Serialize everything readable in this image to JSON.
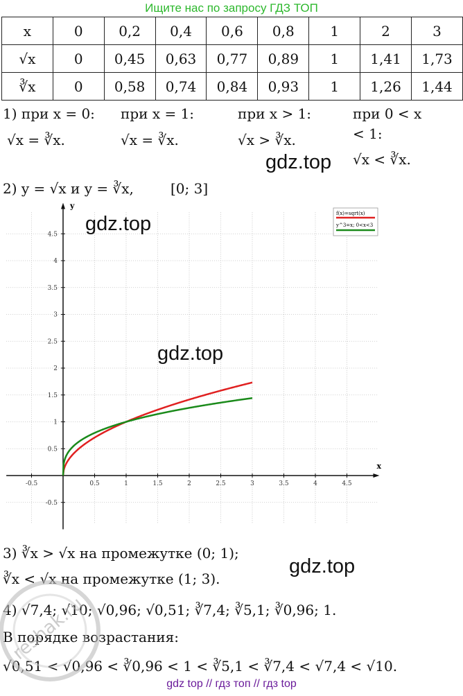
{
  "banner": "Ищите нас по запросу ГДЗ ТОП",
  "table": {
    "rows": [
      [
        "x",
        "0",
        "0,2",
        "0,4",
        "0,6",
        "0,8",
        "1",
        "2",
        "3"
      ],
      [
        "√x",
        "0",
        "0,45",
        "0,63",
        "0,77",
        "0,89",
        "1",
        "1,41",
        "1,73"
      ],
      [
        "∛x",
        "0",
        "0,58",
        "0,74",
        "0,84",
        "0,93",
        "1",
        "1,26",
        "1,44"
      ]
    ]
  },
  "part1": {
    "c1_head": "1) при x = 0:",
    "c1_body": "√x = ∛x.",
    "c2_head": "при x = 1:",
    "c2_body": "√x = ∛x.",
    "c3_head": "при x > 1:",
    "c3_body": "√x > ∛x.",
    "c4_head1": "при 0 < x",
    "c4_head2": "< 1:",
    "c4_body": "√x < ∛x."
  },
  "part2": {
    "title": "2) y = √x и y = ∛x,",
    "interval": "[0; 3]"
  },
  "graph": {
    "x_axis_label": "x",
    "y_axis_label": "y",
    "legend": [
      "f(x)=sqrt(x)",
      "y^3=x; 0<x<3"
    ],
    "x_ticks": [
      "-0.5",
      "0.5",
      "1",
      "1.5",
      "2",
      "2.5",
      "3",
      "3.5",
      "4",
      "4.5"
    ],
    "y_ticks": [
      "4.5",
      "4",
      "3.5",
      "3",
      "2.5",
      "2",
      "1.5",
      "1",
      "0.5",
      "-0.5"
    ],
    "sqrt_color": "#e02020",
    "cbrt_color": "#1a8a1a"
  },
  "part3": {
    "line1": "3) ∛x > √x на промежутке (0; 1);",
    "line2": "∛x < √x на промежутке (1; 3)."
  },
  "part4": {
    "line1": "4) √7,4; √10; √0,96; √0,51; ∛7,4; ∛5,1; ∛0,96; 1.",
    "line2": "В порядке возрастания:",
    "line3": "√0,51 < √0,96 < ∛0,96 < 1 < ∛5,1 < ∛7,4 < √7,4 < √10."
  },
  "watermarks": [
    "gdz.top",
    "gdz.top",
    "gdz.top",
    "gdz.top"
  ],
  "stamp_text": "reshak.ru",
  "footer": "gdz top  //  гдз топ  //  гдз top"
}
